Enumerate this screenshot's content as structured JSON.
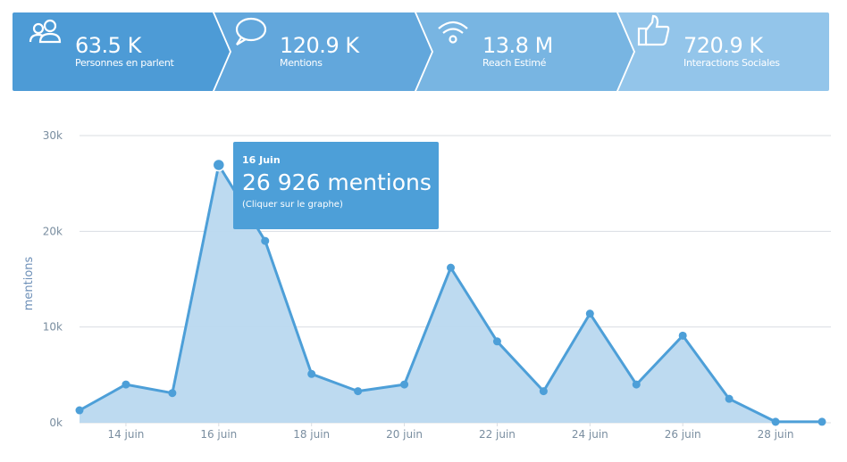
{
  "kpis": [
    {
      "value": "63.5 K",
      "label": "Personnes en parlent",
      "icon": "people-icon",
      "color": "#4d9bd6"
    },
    {
      "value": "120.9 K",
      "label": "Mentions",
      "icon": "speech-bubble-icon",
      "color": "#62a7dc"
    },
    {
      "value": "13.8 M",
      "label": "Reach Estimé",
      "icon": "wifi-icon",
      "color": "#78b5e2"
    },
    {
      "value": "720.9 K",
      "label": "Interactions Sociales",
      "icon": "thumbs-up-icon",
      "color": "#93c5ea"
    }
  ],
  "tooltip": {
    "date": "16 Juin",
    "value": "26 926 mentions",
    "hint": "(Cliquer sur le graphe)"
  },
  "chart_data": {
    "type": "area",
    "ylabel": "mentions",
    "ylim": [
      0,
      30000
    ],
    "yticks": [
      0,
      10000,
      20000,
      30000
    ],
    "ytick_labels": [
      "0k",
      "10k",
      "20k",
      "30k"
    ],
    "x": [
      "13 juin",
      "14 juin",
      "15 juin",
      "16 juin",
      "17 juin",
      "18 juin",
      "19 juin",
      "20 juin",
      "21 juin",
      "22 juin",
      "23 juin",
      "24 juin",
      "25 juin",
      "26 juin",
      "27 juin",
      "28 juin",
      "29 juin"
    ],
    "xtick_labels": [
      "14 juin",
      "16 juin",
      "18 juin",
      "20 juin",
      "22 juin",
      "24 juin",
      "26 juin",
      "28 juin"
    ],
    "series": [
      {
        "values": [
          1300,
          4000,
          3100,
          26926,
          19000,
          5100,
          3300,
          4000,
          16200,
          8500,
          3300,
          11400,
          4000,
          9100,
          2500,
          100,
          100
        ]
      }
    ],
    "highlight_index": 3,
    "colors": {
      "line": "#4d9fd8",
      "fill": "#b9d8ef",
      "grid": "#d9dde2"
    },
    "grid": true,
    "legend": "none"
  }
}
